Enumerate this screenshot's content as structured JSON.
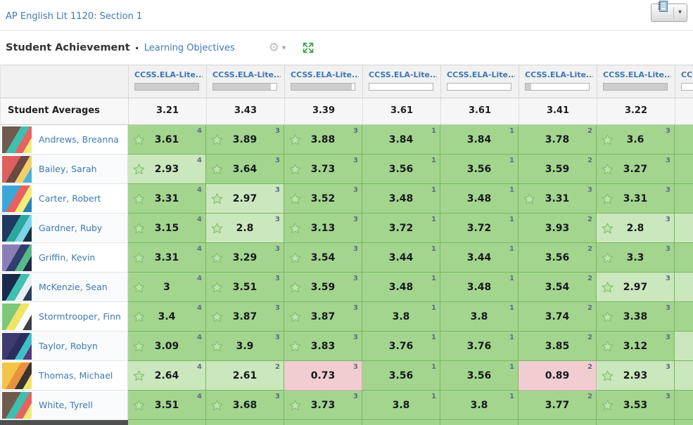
{
  "header": {
    "course_link": "AP English Lit 1120: Section 1",
    "title": "Student Achievement",
    "separator": "·",
    "view_link": "Learning Objectives"
  },
  "icons": {
    "gradebook": "gradebook-icon",
    "button_caret": "▾",
    "gear": "⚙",
    "gear_caret": "▾",
    "expand": "expand-arrows-icon",
    "star": "star-icon"
  },
  "colors": {
    "link_blue": "#3d7ab5",
    "mastery_green": "#a3d58f",
    "mastery_light_green": "#cbe7bd",
    "alert_pink": "#f1cdd1",
    "progress_fill": "#cdcdcd",
    "expand_green": "#3f9b3f"
  },
  "table": {
    "averages_label": "Student Averages",
    "columns": [
      {
        "label": "CCSS.ELA-Lite...",
        "progress_pct": 100
      },
      {
        "label": "CCSS.ELA-Lite...",
        "progress_pct": 91
      },
      {
        "label": "CCSS.ELA-Lite...",
        "progress_pct": 96
      },
      {
        "label": "CCSS.ELA-Lite...",
        "progress_pct": 0
      },
      {
        "label": "CCSS.ELA-Lite...",
        "progress_pct": 0
      },
      {
        "label": "CCSS.ELA-Lite...",
        "progress_pct": 9
      },
      {
        "label": "CCSS.ELA-Lite...",
        "progress_pct": 100
      },
      {
        "label": "CCSS.ELA-Lite...",
        "progress_pct": 0
      }
    ],
    "student_averages": [
      "3.21",
      "3.43",
      "3.39",
      "3.61",
      "3.61",
      "3.41",
      "3.22",
      ""
    ],
    "students": [
      {
        "name": "Andrews, Breanna",
        "avatar_colors": [
          "#6f5a4e",
          "#3fbfae",
          "#e8625f",
          "#f2ec78"
        ],
        "cells": [
          {
            "v": "3.61",
            "sup": "4",
            "star": true,
            "tone": "green"
          },
          {
            "v": "3.89",
            "sup": "3",
            "star": true,
            "tone": "green"
          },
          {
            "v": "3.88",
            "sup": "3",
            "star": true,
            "tone": "green"
          },
          {
            "v": "3.84",
            "sup": "1",
            "star": false,
            "tone": "green"
          },
          {
            "v": "3.84",
            "sup": "1",
            "star": false,
            "tone": "green"
          },
          {
            "v": "3.78",
            "sup": "2",
            "star": false,
            "tone": "green"
          },
          {
            "v": "3.6",
            "sup": "3",
            "star": true,
            "tone": "green"
          },
          {
            "v": "",
            "sup": "",
            "star": false,
            "tone": "green"
          }
        ]
      },
      {
        "name": "Bailey, Sarah",
        "avatar_colors": [
          "#dd5f5e",
          "#6b4a41",
          "#f0d06a",
          "#4aaede"
        ],
        "cells": [
          {
            "v": "2.93",
            "sup": "4",
            "star": true,
            "tone": "light"
          },
          {
            "v": "3.64",
            "sup": "3",
            "star": true,
            "tone": "green"
          },
          {
            "v": "3.73",
            "sup": "3",
            "star": true,
            "tone": "green"
          },
          {
            "v": "3.56",
            "sup": "1",
            "star": false,
            "tone": "green"
          },
          {
            "v": "3.56",
            "sup": "1",
            "star": false,
            "tone": "green"
          },
          {
            "v": "3.59",
            "sup": "2",
            "star": false,
            "tone": "green"
          },
          {
            "v": "3.27",
            "sup": "3",
            "star": true,
            "tone": "green"
          },
          {
            "v": "",
            "sup": "",
            "star": false,
            "tone": "green"
          }
        ]
      },
      {
        "name": "Carter, Robert",
        "avatar_colors": [
          "#3ba7d9",
          "#e8615e",
          "#f2ec78",
          "#2a7fb5"
        ],
        "cells": [
          {
            "v": "3.31",
            "sup": "4",
            "star": true,
            "tone": "green"
          },
          {
            "v": "2.97",
            "sup": "3",
            "star": true,
            "tone": "light"
          },
          {
            "v": "3.52",
            "sup": "3",
            "star": true,
            "tone": "green"
          },
          {
            "v": "3.48",
            "sup": "1",
            "star": false,
            "tone": "green"
          },
          {
            "v": "3.48",
            "sup": "1",
            "star": false,
            "tone": "green"
          },
          {
            "v": "3.31",
            "sup": "3",
            "star": true,
            "tone": "green"
          },
          {
            "v": "3.31",
            "sup": "3",
            "star": true,
            "tone": "green"
          },
          {
            "v": "",
            "sup": "",
            "star": false,
            "tone": "green"
          }
        ]
      },
      {
        "name": "Gardner, Ruby",
        "avatar_colors": [
          "#1f3a5f",
          "#2aa8a0",
          "#7fd4e8",
          "#163043"
        ],
        "cells": [
          {
            "v": "3.15",
            "sup": "4",
            "star": true,
            "tone": "green"
          },
          {
            "v": "2.8",
            "sup": "3",
            "star": true,
            "tone": "light"
          },
          {
            "v": "3.13",
            "sup": "3",
            "star": true,
            "tone": "green"
          },
          {
            "v": "3.72",
            "sup": "1",
            "star": false,
            "tone": "green"
          },
          {
            "v": "3.72",
            "sup": "1",
            "star": false,
            "tone": "green"
          },
          {
            "v": "3.93",
            "sup": "2",
            "star": false,
            "tone": "green"
          },
          {
            "v": "2.8",
            "sup": "3",
            "star": true,
            "tone": "light"
          },
          {
            "v": "",
            "sup": "",
            "star": false,
            "tone": "light"
          }
        ]
      },
      {
        "name": "Griffin, Kevin",
        "avatar_colors": [
          "#8a7fb5",
          "#2f3f6e",
          "#57b98a",
          "#20294a"
        ],
        "cells": [
          {
            "v": "3.31",
            "sup": "4",
            "star": true,
            "tone": "green"
          },
          {
            "v": "3.29",
            "sup": "3",
            "star": true,
            "tone": "green"
          },
          {
            "v": "3.54",
            "sup": "3",
            "star": true,
            "tone": "green"
          },
          {
            "v": "3.44",
            "sup": "1",
            "star": false,
            "tone": "green"
          },
          {
            "v": "3.44",
            "sup": "1",
            "star": false,
            "tone": "green"
          },
          {
            "v": "3.56",
            "sup": "2",
            "star": false,
            "tone": "green"
          },
          {
            "v": "3.3",
            "sup": "3",
            "star": true,
            "tone": "green"
          },
          {
            "v": "",
            "sup": "",
            "star": false,
            "tone": "green"
          }
        ]
      },
      {
        "name": "McKenzie, Sean",
        "avatar_colors": [
          "#1b2a4a",
          "#3fc0b0",
          "#e8f0f2",
          "#2a3f5f"
        ],
        "cells": [
          {
            "v": "3",
            "sup": "4",
            "star": true,
            "tone": "green"
          },
          {
            "v": "3.51",
            "sup": "3",
            "star": true,
            "tone": "green"
          },
          {
            "v": "3.59",
            "sup": "3",
            "star": true,
            "tone": "green"
          },
          {
            "v": "3.48",
            "sup": "1",
            "star": false,
            "tone": "green"
          },
          {
            "v": "3.48",
            "sup": "1",
            "star": false,
            "tone": "green"
          },
          {
            "v": "3.54",
            "sup": "2",
            "star": false,
            "tone": "green"
          },
          {
            "v": "2.97",
            "sup": "3",
            "star": true,
            "tone": "light"
          },
          {
            "v": "",
            "sup": "",
            "star": false,
            "tone": "light"
          }
        ]
      },
      {
        "name": "Stormtrooper, Finn",
        "avatar_colors": [
          "#7ec87a",
          "#f0e468",
          "#ffffff",
          "#3a3f4a"
        ],
        "cells": [
          {
            "v": "3.4",
            "sup": "4",
            "star": true,
            "tone": "green"
          },
          {
            "v": "3.87",
            "sup": "3",
            "star": true,
            "tone": "green"
          },
          {
            "v": "3.87",
            "sup": "3",
            "star": true,
            "tone": "green"
          },
          {
            "v": "3.8",
            "sup": "1",
            "star": false,
            "tone": "green"
          },
          {
            "v": "3.8",
            "sup": "1",
            "star": false,
            "tone": "green"
          },
          {
            "v": "3.74",
            "sup": "2",
            "star": false,
            "tone": "green"
          },
          {
            "v": "3.38",
            "sup": "3",
            "star": true,
            "tone": "green"
          },
          {
            "v": "",
            "sup": "",
            "star": false,
            "tone": "green"
          }
        ]
      },
      {
        "name": "Taylor, Robyn",
        "avatar_colors": [
          "#3f3a6e",
          "#2a2f5f",
          "#3fc0c9",
          "#57357a"
        ],
        "cells": [
          {
            "v": "3.09",
            "sup": "4",
            "star": true,
            "tone": "green"
          },
          {
            "v": "3.9",
            "sup": "3",
            "star": true,
            "tone": "green"
          },
          {
            "v": "3.83",
            "sup": "3",
            "star": true,
            "tone": "green"
          },
          {
            "v": "3.76",
            "sup": "1",
            "star": false,
            "tone": "green"
          },
          {
            "v": "3.76",
            "sup": "1",
            "star": false,
            "tone": "green"
          },
          {
            "v": "3.85",
            "sup": "2",
            "star": false,
            "tone": "green"
          },
          {
            "v": "3.12",
            "sup": "3",
            "star": true,
            "tone": "green"
          },
          {
            "v": "",
            "sup": "",
            "star": false,
            "tone": "light"
          }
        ]
      },
      {
        "name": "Thomas, Michael",
        "avatar_colors": [
          "#f2c44a",
          "#e8913f",
          "#3a3530",
          "#f0e468"
        ],
        "cells": [
          {
            "v": "2.64",
            "sup": "4",
            "star": true,
            "tone": "light"
          },
          {
            "v": "2.61",
            "sup": "2",
            "star": false,
            "tone": "light"
          },
          {
            "v": "0.73",
            "sup": "3",
            "star": false,
            "tone": "pink"
          },
          {
            "v": "3.56",
            "sup": "1",
            "star": false,
            "tone": "green"
          },
          {
            "v": "3.56",
            "sup": "1",
            "star": false,
            "tone": "green"
          },
          {
            "v": "0.89",
            "sup": "2",
            "star": false,
            "tone": "pink"
          },
          {
            "v": "2.93",
            "sup": "3",
            "star": true,
            "tone": "light"
          },
          {
            "v": "",
            "sup": "",
            "star": false,
            "tone": "light"
          }
        ]
      },
      {
        "name": "White, Tyrell",
        "avatar_colors": [
          "#6f5a4e",
          "#3fbfae",
          "#e8625f",
          "#f2ec78"
        ],
        "cells": [
          {
            "v": "3.51",
            "sup": "4",
            "star": true,
            "tone": "green"
          },
          {
            "v": "3.68",
            "sup": "3",
            "star": true,
            "tone": "green"
          },
          {
            "v": "3.73",
            "sup": "3",
            "star": true,
            "tone": "green"
          },
          {
            "v": "3.8",
            "sup": "1",
            "star": false,
            "tone": "green"
          },
          {
            "v": "3.8",
            "sup": "1",
            "star": false,
            "tone": "green"
          },
          {
            "v": "3.77",
            "sup": "2",
            "star": false,
            "tone": "green"
          },
          {
            "v": "3.53",
            "sup": "3",
            "star": true,
            "tone": "green"
          },
          {
            "v": "",
            "sup": "",
            "star": false,
            "tone": "green"
          }
        ]
      }
    ]
  }
}
